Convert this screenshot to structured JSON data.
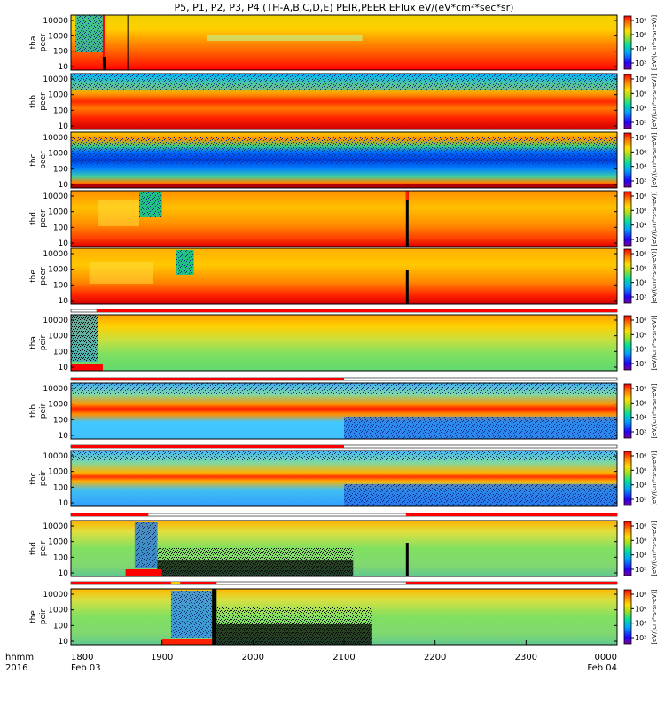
{
  "chart_data": {
    "type": "heatmap",
    "title": "P5, P1, P2, P3, P4 (TH-A,B,C,D,E) PEIR,PEER EFlux eV/(eV*cm²*sec*sr)",
    "x_axis": {
      "ticks": [
        "1800",
        "1900",
        "2000",
        "2100",
        "2200",
        "2300",
        "0000"
      ],
      "date_left": "Feb 03",
      "date_right": "Feb 04",
      "corner_label_1": "hhmm",
      "corner_label_2": "2016"
    },
    "y_ticks": [
      "10",
      "100",
      "1000",
      "10000"
    ],
    "colorbar_ticks": [
      "10²",
      "10⁴",
      "10⁶",
      "10⁸"
    ],
    "colorbar_label": "[eV/(cm²-s-sr-eV)]",
    "panels": [
      {
        "probe": "tha",
        "species": "peer",
        "pattern": "e_a"
      },
      {
        "probe": "thb",
        "species": "peer",
        "pattern": "e_b"
      },
      {
        "probe": "thc",
        "species": "peer",
        "pattern": "e_c"
      },
      {
        "probe": "thd",
        "species": "peer",
        "pattern": "e_d"
      },
      {
        "probe": "the",
        "species": "peer",
        "pattern": "e_e"
      },
      {
        "probe": "tha",
        "species": "peir",
        "pattern": "i_a"
      },
      {
        "probe": "thb",
        "species": "peir",
        "pattern": "i_b"
      },
      {
        "probe": "thc",
        "species": "peir",
        "pattern": "i_c"
      },
      {
        "probe": "thd",
        "species": "peir",
        "pattern": "i_d"
      },
      {
        "probe": "the",
        "species": "peir",
        "pattern": "i_e"
      }
    ],
    "grid": false
  }
}
